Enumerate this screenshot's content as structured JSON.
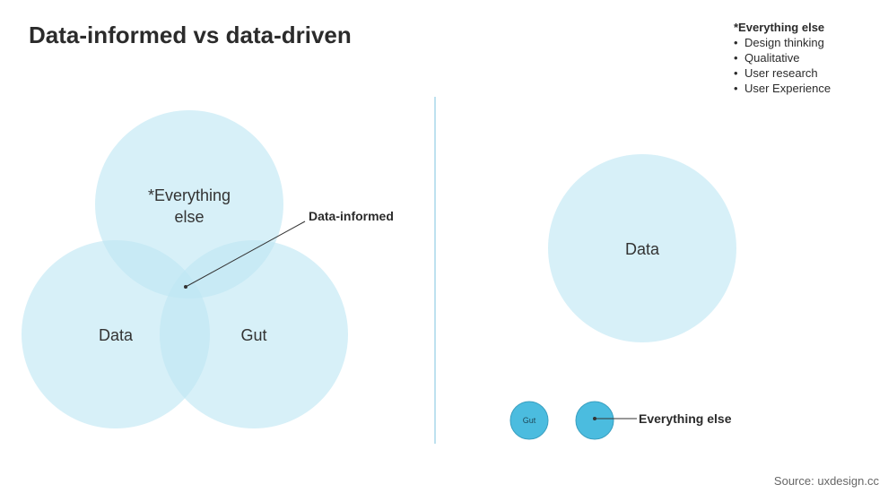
{
  "title": "Data-informed vs data-driven",
  "note": {
    "heading": "*Everything else",
    "items": [
      "Design thinking",
      "Qualitative",
      "User research",
      "User Experience"
    ]
  },
  "left_diagram": {
    "circle_top_label_line1": "*Everything",
    "circle_top_label_line2": "else",
    "circle_left_label": "Data",
    "circle_right_label": "Gut",
    "intersection_callout": "Data-informed"
  },
  "right_diagram": {
    "big_circle_label": "Data",
    "small_circle_label": "Gut",
    "callout": "Everything else"
  },
  "source": "Source: uxdesign.cc",
  "colors": {
    "light_circle": "#bfe6f3",
    "small_circle": "#4bbcdf",
    "divider": "#a8d7ea",
    "text": "#333333"
  }
}
